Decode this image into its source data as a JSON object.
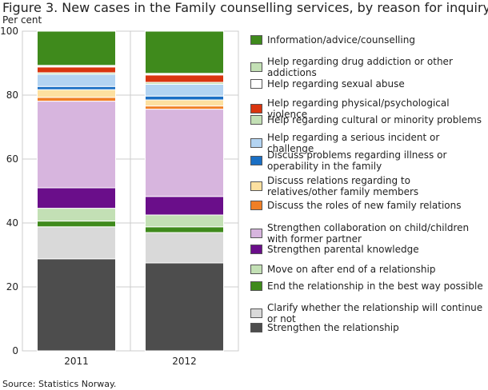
{
  "chart_data": {
    "type": "bar",
    "stacked": true,
    "title": "Figure 3. New cases in the Family counselling services, by reason for inquiry",
    "ylabel": "Per cent",
    "xlabel": "",
    "ylim": [
      0,
      100
    ],
    "yticks": [
      "0",
      "20",
      "40",
      "60",
      "80",
      "100"
    ],
    "categories": [
      "2011",
      "2012"
    ],
    "source": "Source: Statistics Norway.",
    "series": [
      {
        "name": "Strengthen the relationship",
        "color": "#4d4d4d",
        "values": [
          28.8,
          27.5
        ]
      },
      {
        "name": "Clarify whether the relationship will continue or not",
        "color": "#d9d9d9",
        "values": [
          10.0,
          9.5
        ]
      },
      {
        "name": "End the relationship in the best way possible",
        "color": "#3f8a1c",
        "values": [
          1.8,
          1.8
        ]
      },
      {
        "name": "Move on after end of a relationship",
        "color": "#c3e0b5",
        "values": [
          4.0,
          3.7
        ]
      },
      {
        "name": "Strengthen parental knowledge",
        "color": "#6a0e8a",
        "values": [
          6.4,
          5.8
        ]
      },
      {
        "name": "Strengthen collaboration on child/children with former partner",
        "color": "#d7b5de",
        "values": [
          27.1,
          27.3
        ]
      },
      {
        "name": "Discuss the roles of new family relations",
        "color": "#f07f26",
        "values": [
          1.2,
          1.0
        ]
      },
      {
        "name": "Discuss relations regarding to relatives/other family members",
        "color": "#fde0a0",
        "values": [
          2.4,
          1.9
        ]
      },
      {
        "name": "Discuss problems regarding illness or operability in the family",
        "color": "#1a6fc4",
        "values": [
          1.0,
          1.2
        ]
      },
      {
        "name": "Help regarding a serious incident or challenge",
        "color": "#b3d4f2",
        "values": [
          3.8,
          3.7
        ]
      },
      {
        "name": "Help regarding cultural or minority problems",
        "color": "#c3e0b5",
        "values": [
          0.5,
          0.6
        ]
      },
      {
        "name": "Help regarding physical/psychological violence",
        "color": "#d9350f",
        "values": [
          1.8,
          2.3
        ]
      },
      {
        "name": "Help regarding sexual abuse",
        "color": "#ffffff",
        "values": [
          0.2,
          0.2
        ]
      },
      {
        "name": "Help regarding drug addiction or other addictions",
        "color": "#c3e0b5",
        "values": [
          0.3,
          0.3
        ]
      },
      {
        "name": "Information/advice/counselling",
        "color": "#3f8a1c",
        "values": [
          10.7,
          13.2
        ]
      }
    ]
  }
}
